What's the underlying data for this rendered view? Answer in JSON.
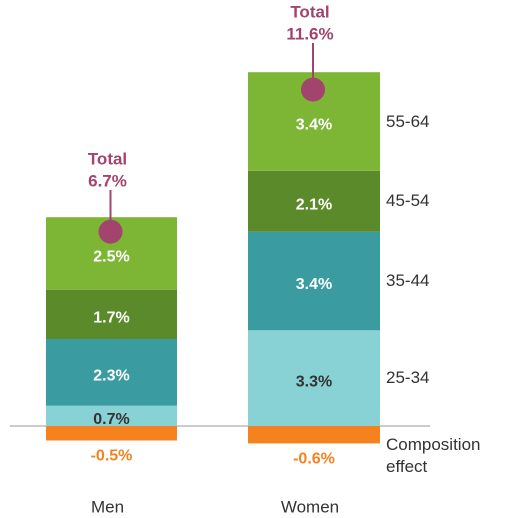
{
  "chart_data": {
    "type": "stacked_bar",
    "categories": [
      "Men",
      "Women"
    ],
    "series": [
      {
        "name": "Composition effect",
        "color": "#f5821f",
        "values": [
          -0.5,
          -0.6
        ],
        "value_labels": [
          "-0.5%",
          "-0.6%"
        ]
      },
      {
        "name": "25-34",
        "color": "#88d1d4",
        "values": [
          0.7,
          3.3
        ],
        "value_labels": [
          "0.7%",
          "3.3%"
        ]
      },
      {
        "name": "35-44",
        "color": "#3a9ca1",
        "values": [
          2.3,
          3.4
        ],
        "value_labels": [
          "2.3%",
          "3.4%"
        ]
      },
      {
        "name": "45-54",
        "color": "#5b8a2b",
        "values": [
          1.7,
          2.1
        ],
        "value_labels": [
          "1.7%",
          "2.1%"
        ]
      },
      {
        "name": "55-64",
        "color": "#7db535",
        "values": [
          2.5,
          3.4
        ],
        "value_labels": [
          "2.5%",
          "3.4%"
        ]
      }
    ],
    "total_label": "Total",
    "totals": [
      6.7,
      11.6
    ],
    "total_value_labels": [
      "6.7%",
      "11.6%"
    ],
    "total_color": "#a3446f",
    "ylim": [
      -1,
      13
    ]
  }
}
